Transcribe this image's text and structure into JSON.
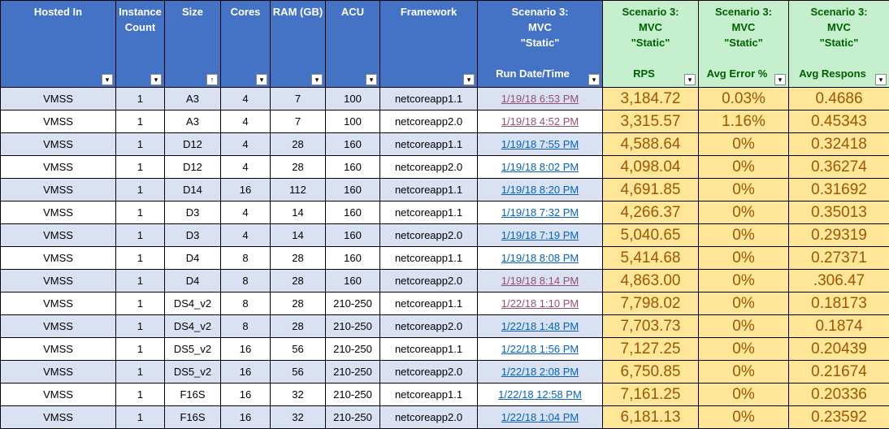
{
  "headers": {
    "hosted_in": "Hosted In",
    "instance_count": "Instance Count",
    "size": "Size",
    "cores": "Cores",
    "ram": "RAM (GB)",
    "acu": "ACU",
    "framework": "Framework",
    "scenario_line1": "Scenario 3:",
    "scenario_line2": "MVC",
    "scenario_line3": "\"Static\"",
    "run_datetime": "Run Date/Time",
    "rps": "RPS",
    "avg_error": "Avg Error %",
    "avg_response": "Avg Respons"
  },
  "filter_icons": {
    "hosted_in": "filter-active-icon",
    "instance_count": "filter-active-icon",
    "size": "sort-ascending-icon",
    "cores": "dropdown-icon",
    "ram": "dropdown-icon",
    "acu": "dropdown-icon",
    "framework": "dropdown-icon",
    "run_datetime": "filter-active-icon",
    "rps": "dropdown-icon",
    "avg_error": "dropdown-icon",
    "avg_response": "dropdown-icon"
  },
  "colors": {
    "header_blue": "#4472c4",
    "header_green": "#c6efce",
    "header_green_text": "#006100",
    "band_blue": "#d9e1f2",
    "metric_fill": "#ffe699",
    "metric_text": "#9c5700",
    "link": "#0563c1",
    "link_visited": "#954f72"
  },
  "rows": [
    {
      "hosted": "VMSS",
      "count": "1",
      "size": "A3",
      "cores": "4",
      "ram": "7",
      "acu": "100",
      "framework": "netcoreapp1.1",
      "date": "1/19/18 6:53 PM",
      "visited": true,
      "rps": "3,184.72",
      "err": "0.03%",
      "resp": "0.4686"
    },
    {
      "hosted": "VMSS",
      "count": "1",
      "size": "A3",
      "cores": "4",
      "ram": "7",
      "acu": "100",
      "framework": "netcoreapp2.0",
      "date": "1/19/18 4:52 PM",
      "visited": true,
      "rps": "3,315.57",
      "err": "1.16%",
      "resp": "0.45343"
    },
    {
      "hosted": "VMSS",
      "count": "1",
      "size": "D12",
      "cores": "4",
      "ram": "28",
      "acu": "160",
      "framework": "netcoreapp1.1",
      "date": "1/19/18 7:55 PM",
      "visited": false,
      "rps": "4,588.64",
      "err": "0%",
      "resp": "0.32418"
    },
    {
      "hosted": "VMSS",
      "count": "1",
      "size": "D12",
      "cores": "4",
      "ram": "28",
      "acu": "160",
      "framework": "netcoreapp2.0",
      "date": "1/19/18 8:02 PM",
      "visited": false,
      "rps": "4,098.04",
      "err": "0%",
      "resp": "0.36274"
    },
    {
      "hosted": "VMSS",
      "count": "1",
      "size": "D14",
      "cores": "16",
      "ram": "112",
      "acu": "160",
      "framework": "netcoreapp1.1",
      "date": "1/19/18 8:20 PM",
      "visited": false,
      "rps": "4,691.85",
      "err": "0%",
      "resp": "0.31692"
    },
    {
      "hosted": "VMSS",
      "count": "1",
      "size": "D3",
      "cores": "4",
      "ram": "14",
      "acu": "160",
      "framework": "netcoreapp1.1",
      "date": "1/19/18 7:32 PM",
      "visited": false,
      "rps": "4,266.37",
      "err": "0%",
      "resp": "0.35013"
    },
    {
      "hosted": "VMSS",
      "count": "1",
      "size": "D3",
      "cores": "4",
      "ram": "14",
      "acu": "160",
      "framework": "netcoreapp2.0",
      "date": "1/19/18 7:19 PM",
      "visited": false,
      "rps": "5,040.65",
      "err": "0%",
      "resp": "0.29319"
    },
    {
      "hosted": "VMSS",
      "count": "1",
      "size": "D4",
      "cores": "8",
      "ram": "28",
      "acu": "160",
      "framework": "netcoreapp1.1",
      "date": "1/19/18 8:08 PM",
      "visited": false,
      "rps": "5,414.68",
      "err": "0%",
      "resp": "0.27371"
    },
    {
      "hosted": "VMSS",
      "count": "1",
      "size": "D4",
      "cores": "8",
      "ram": "28",
      "acu": "160",
      "framework": "netcoreapp2.0",
      "date": "1/19/18 8:14 PM",
      "visited": true,
      "rps": "4,863.00",
      "err": "0%",
      "resp": ".306.47"
    },
    {
      "hosted": "VMSS",
      "count": "1",
      "size": "DS4_v2",
      "cores": "8",
      "ram": "28",
      "acu": "210-250",
      "framework": "netcoreapp1.1",
      "date": "1/22/18 1:10 PM",
      "visited": true,
      "rps": "7,798.02",
      "err": "0%",
      "resp": "0.18173"
    },
    {
      "hosted": "VMSS",
      "count": "1",
      "size": "DS4_v2",
      "cores": "8",
      "ram": "28",
      "acu": "210-250",
      "framework": "netcoreapp2.0",
      "date": "1/22/18 1:48 PM",
      "visited": false,
      "rps": "7,703.73",
      "err": "0%",
      "resp": "0.1874"
    },
    {
      "hosted": "VMSS",
      "count": "1",
      "size": "DS5_v2",
      "cores": "16",
      "ram": "56",
      "acu": "210-250",
      "framework": "netcoreapp1.1",
      "date": "1/22/18 1:56 PM",
      "visited": false,
      "rps": "7,127.25",
      "err": "0%",
      "resp": "0.20439"
    },
    {
      "hosted": "VMSS",
      "count": "1",
      "size": "DS5_v2",
      "cores": "16",
      "ram": "56",
      "acu": "210-250",
      "framework": "netcoreapp2.0",
      "date": "1/22/18 2:08 PM",
      "visited": false,
      "rps": "6,750.85",
      "err": "0%",
      "resp": "0.21674"
    },
    {
      "hosted": "VMSS",
      "count": "1",
      "size": "F16S",
      "cores": "16",
      "ram": "32",
      "acu": "210-250",
      "framework": "netcoreapp1.1",
      "date": "1/22/18 12:58 PM",
      "visited": false,
      "rps": "7,161.25",
      "err": "0%",
      "resp": "0.20336"
    },
    {
      "hosted": "VMSS",
      "count": "1",
      "size": "F16S",
      "cores": "16",
      "ram": "32",
      "acu": "210-250",
      "framework": "netcoreapp2.0",
      "date": "1/22/18 1:04 PM",
      "visited": false,
      "rps": "6,181.13",
      "err": "0%",
      "resp": "0.23592"
    }
  ]
}
